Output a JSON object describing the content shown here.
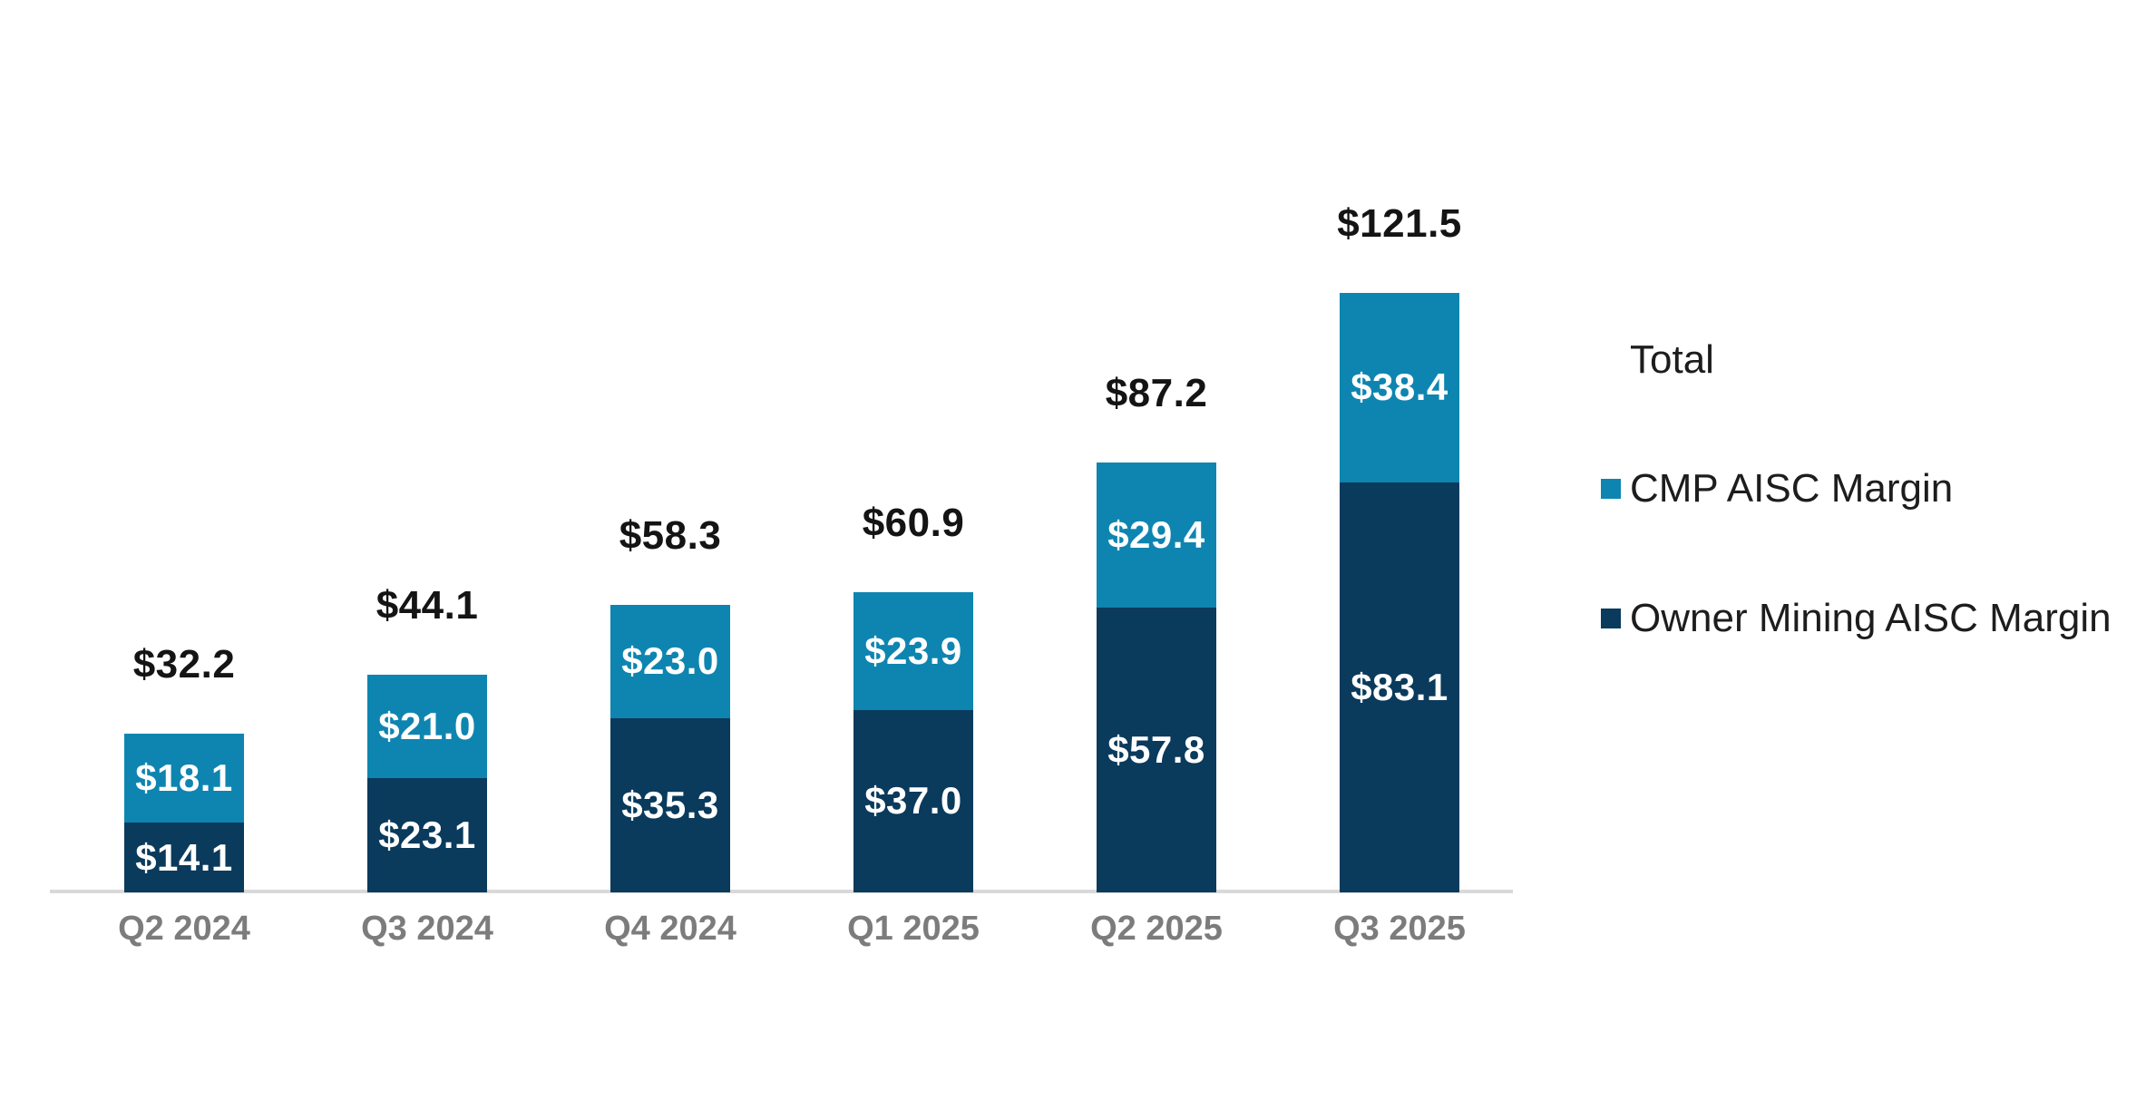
{
  "chart_data": {
    "type": "bar",
    "stacked": true,
    "grid": false,
    "background": "#ffffff",
    "categories": [
      "Q2 2024",
      "Q3 2024",
      "Q4 2024",
      "Q1 2025",
      "Q2 2025",
      "Q3 2025"
    ],
    "series": [
      {
        "name": "Owner Mining AISC Margin",
        "color": "#0a3a5c",
        "values": [
          14.1,
          23.1,
          35.3,
          37.0,
          57.8,
          83.1
        ],
        "labels": [
          "$14.1",
          "$23.1",
          "$35.3",
          "$37.0",
          "$57.8",
          "$83.1"
        ]
      },
      {
        "name": "CMP AISC Margin",
        "color": "#0e85b0",
        "values": [
          18.1,
          21.0,
          23.0,
          23.9,
          29.4,
          38.4
        ],
        "labels": [
          "$18.1",
          "$21.0",
          "$23.0",
          "$23.9",
          "$29.4",
          "$38.4"
        ]
      }
    ],
    "totals": [
      32.2,
      44.1,
      58.3,
      60.9,
      87.2,
      121.5
    ],
    "total_labels": [
      "$32.2",
      "$44.1",
      "$58.3",
      "$60.9",
      "$87.2",
      "$121.5"
    ],
    "ylim": [
      0,
      125
    ],
    "legend_position": "right",
    "axis_line_color": "#d9d9d9",
    "tick_label_color": "#7c7c7c",
    "total_label_color": "#141414",
    "segment_label_color": "#ffffff"
  },
  "legend": {
    "title": "Total",
    "entries": [
      {
        "label": "CMP AISC Margin",
        "color": "#0e85b0"
      },
      {
        "label": "Owner Mining AISC Margin",
        "color": "#0a3a5c"
      }
    ]
  }
}
